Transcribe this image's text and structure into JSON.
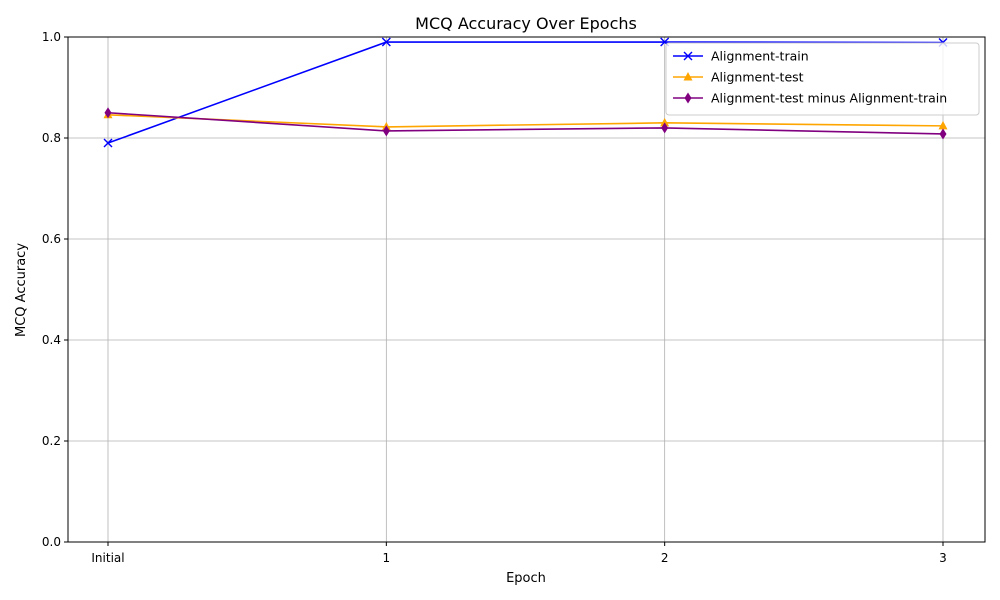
{
  "chart_data": {
    "type": "line",
    "title": "MCQ Accuracy Over Epochs",
    "xlabel": "Epoch",
    "ylabel": "MCQ Accuracy",
    "categories": [
      "Initial",
      "1",
      "2",
      "3"
    ],
    "ylim": [
      0,
      1.0
    ],
    "yticks": [
      "0.0",
      "0.2",
      "0.4",
      "0.6",
      "0.8",
      "1.0"
    ],
    "grid": true,
    "legend_position": "top-right",
    "series": [
      {
        "name": "Alignment-train",
        "color": "#0000ff",
        "marker": "x",
        "values": [
          0.79,
          0.99,
          0.99,
          0.989
        ]
      },
      {
        "name": "Alignment-test",
        "color": "#ffa500",
        "marker": "triangle",
        "values": [
          0.846,
          0.822,
          0.83,
          0.824
        ]
      },
      {
        "name": "Alignment-test minus Alignment-train",
        "color": "#800080",
        "marker": "thin-diamond",
        "values": [
          0.85,
          0.814,
          0.82,
          0.808
        ]
      }
    ]
  }
}
